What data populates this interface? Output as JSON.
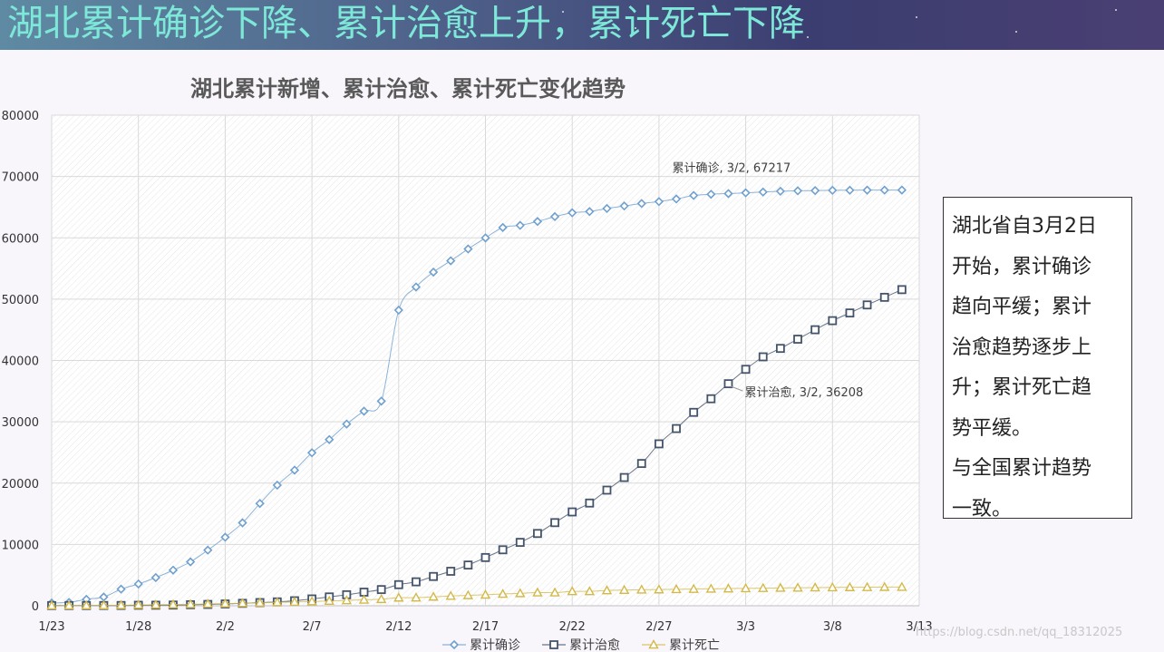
{
  "slide": {
    "title": "湖北累计确诊下降、累计治愈上升，累计死亡下降",
    "note_lines": [
      "湖北省自3月2日",
      "开始，累计确诊",
      "趋向平缓；累计",
      "治愈趋势逐步上",
      "升；累计死亡趋",
      "势平缓。",
      "与全国累计趋势",
      "一致。"
    ],
    "watermark": "https://blog.csdn.net/qq_18312025"
  },
  "chart_data": {
    "type": "line",
    "title": "湖北累计新增、累计治愈、累计死亡变化趋势",
    "ylim": [
      0,
      80000
    ],
    "yticks": [
      0,
      10000,
      20000,
      30000,
      40000,
      50000,
      60000,
      70000,
      80000
    ],
    "xticks": [
      "1/23",
      "1/28",
      "2/2",
      "2/7",
      "2/12",
      "2/17",
      "2/22",
      "2/27",
      "3/3",
      "3/8",
      "3/13"
    ],
    "grid": true,
    "legend_position": "bottom",
    "x": [
      "1/23",
      "1/24",
      "1/25",
      "1/26",
      "1/27",
      "1/28",
      "1/29",
      "1/30",
      "1/31",
      "2/1",
      "2/2",
      "2/3",
      "2/4",
      "2/5",
      "2/6",
      "2/7",
      "2/8",
      "2/9",
      "2/10",
      "2/11",
      "2/12",
      "2/13",
      "2/14",
      "2/15",
      "2/16",
      "2/17",
      "2/18",
      "2/19",
      "2/20",
      "2/21",
      "2/22",
      "2/23",
      "2/24",
      "2/25",
      "2/26",
      "2/27",
      "2/28",
      "2/29",
      "3/1",
      "3/2",
      "3/3",
      "3/4",
      "3/5",
      "3/6",
      "3/7",
      "3/8",
      "3/9",
      "3/10",
      "3/11",
      "3/12"
    ],
    "series": [
      {
        "name": "累计确诊",
        "color": "#6fa0cf",
        "marker": "diamond",
        "values": [
          444,
          549,
          1052,
          1423,
          2714,
          3554,
          4586,
          5806,
          7153,
          9074,
          11177,
          13522,
          16678,
          19665,
          22112,
          24953,
          27100,
          29631,
          31728,
          33366,
          48206,
          51986,
          54406,
          56249,
          58182,
          59989,
          61682,
          62031,
          62662,
          63454,
          64084,
          64287,
          64786,
          65187,
          65596,
          65914,
          66337,
          66907,
          67103,
          67217,
          67332,
          67466,
          67592,
          67666,
          67707,
          67743,
          67760,
          67773,
          67781,
          67786
        ]
      },
      {
        "name": "累计治愈",
        "color": "#44546a",
        "marker": "square",
        "values": [
          28,
          31,
          32,
          42,
          47,
          80,
          90,
          116,
          166,
          215,
          295,
          396,
          520,
          633,
          817,
          1115,
          1439,
          1795,
          2222,
          2639,
          3441,
          3902,
          4774,
          5623,
          6639,
          7862,
          9128,
          10337,
          11788,
          13557,
          15299,
          16748,
          18854,
          20912,
          23200,
          26403,
          28895,
          31536,
          33757,
          36208,
          38556,
          40592,
          41966,
          43468,
          45011,
          46488,
          47743,
          49056,
          50298,
          51553
        ]
      },
      {
        "name": "累计死亡",
        "color": "#d4b94a",
        "marker": "triangle",
        "values": [
          17,
          24,
          40,
          52,
          76,
          125,
          162,
          204,
          249,
          294,
          350,
          414,
          479,
          549,
          618,
          699,
          780,
          871,
          974,
          1068,
          1310,
          1318,
          1457,
          1596,
          1696,
          1789,
          1921,
          2029,
          2144,
          2144,
          2346,
          2346,
          2495,
          2563,
          2615,
          2641,
          2682,
          2727,
          2761,
          2803,
          2834,
          2871,
          2902,
          2931,
          2959,
          2986,
          3008,
          3024,
          3046,
          3056
        ]
      }
    ],
    "annotations": [
      {
        "series": "累计确诊",
        "x": "3/2",
        "y": 67217,
        "text": "累计确诊, 3/2, 67217"
      },
      {
        "series": "累计治愈",
        "x": "3/2",
        "y": 36208,
        "text": "累计治愈, 3/2, 36208"
      }
    ]
  }
}
